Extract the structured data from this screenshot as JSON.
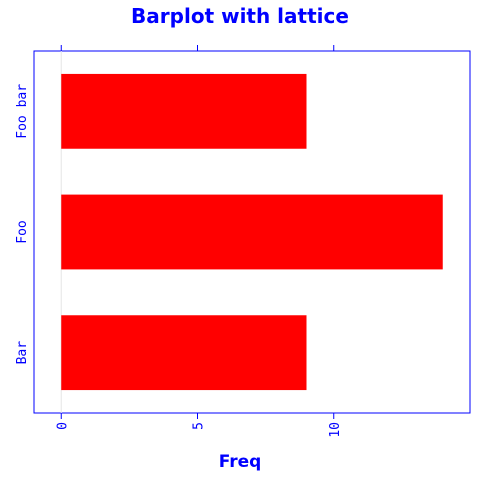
{
  "chart_data": {
    "type": "bar",
    "orientation": "horizontal",
    "title": "Barplot with lattice",
    "xlabel": "Freq",
    "ylabel": "",
    "categories": [
      "Bar",
      "Foo",
      "Foo bar"
    ],
    "values": [
      9,
      14,
      9
    ],
    "xlim": [
      -1,
      15
    ],
    "xticks": [
      "0",
      "5",
      "10"
    ],
    "bar_color": "#ff0000",
    "axis_color": "#0000ff",
    "text_color": "#0000ff",
    "grid": false
  }
}
